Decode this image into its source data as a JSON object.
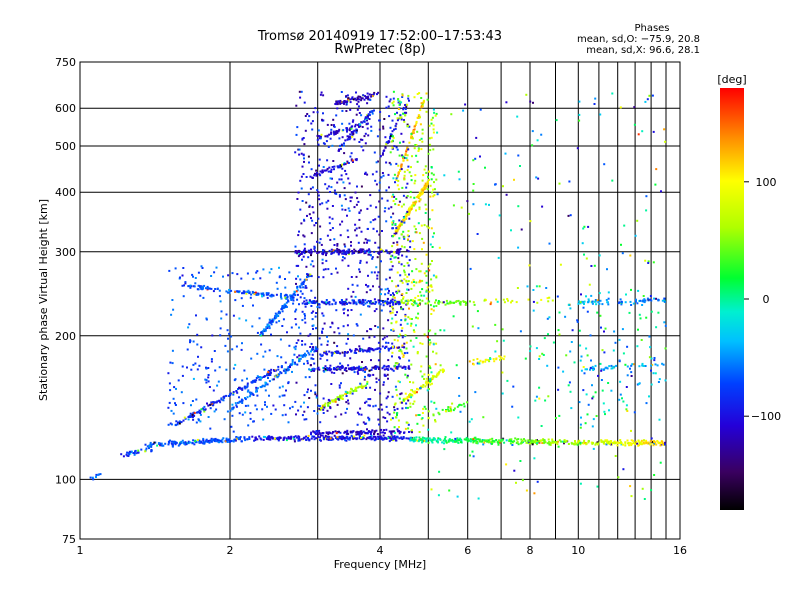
{
  "chart_data": {
    "type": "scatter",
    "title": "Tromsø 20140919 17:52:00–17:53:43",
    "subtitle": "RwPretec (8p)",
    "xlabel": "Frequency [MHz]",
    "ylabel": "Stationary phase Virtual Height [km]",
    "x_scale": "log",
    "y_scale": "log",
    "xlim": [
      1,
      16
    ],
    "ylim": [
      75,
      750
    ],
    "x_ticks": [
      1,
      2,
      4,
      6,
      8,
      10,
      16
    ],
    "x_tick_labels": [
      "1",
      "2",
      "4",
      "6",
      "8",
      "10",
      "16"
    ],
    "x_minor_gridlines": [
      3,
      5,
      7,
      9,
      11,
      12,
      13,
      14,
      15
    ],
    "y_ticks": [
      75,
      100,
      200,
      300,
      400,
      500,
      600,
      750
    ],
    "y_tick_labels": [
      "75",
      "100",
      "200",
      "300",
      "400",
      "500",
      "600",
      "750"
    ],
    "grid": true,
    "phase_box": {
      "heading": "Phases",
      "line_o": "mean, sd,O: −75.9, 20.8",
      "line_x": "mean, sd,X:  96.6, 28.1"
    },
    "colorbar": {
      "label": "[deg]",
      "range": [
        -180,
        180
      ],
      "ticks": [
        100,
        0,
        -100
      ],
      "tick_labels": [
        "100",
        "0",
        "−100"
      ],
      "colormap": "rainbow (black → violet → blue → cyan → green → yellow → orange → red)"
    },
    "traces": [
      {
        "kind": "band",
        "f_start": 1.35,
        "f_end": 2.2,
        "h_start": 118,
        "h_end": 122,
        "phase": -70,
        "density": 160
      },
      {
        "kind": "band",
        "f_start": 2.2,
        "f_end": 4.6,
        "h_start": 122,
        "h_end": 122,
        "phase": -95,
        "density": 240
      },
      {
        "kind": "band",
        "f_start": 4.6,
        "f_end": 15.0,
        "h_start": 121,
        "h_end": 119,
        "phase": -10,
        "phase_end": 110,
        "density": 420
      },
      {
        "kind": "band",
        "f_start": 1.2,
        "f_end": 1.4,
        "h_start": 112,
        "h_end": 116,
        "phase": -75,
        "density": 30
      },
      {
        "kind": "band",
        "f_start": 1.05,
        "f_end": 1.1,
        "h_start": 100,
        "h_end": 103,
        "phase": -70,
        "density": 8
      },
      {
        "kind": "band",
        "f_start": 1.55,
        "f_end": 2.6,
        "h_start": 130,
        "h_end": 175,
        "phase": -85,
        "density": 140
      },
      {
        "kind": "band",
        "f_start": 2.0,
        "f_end": 3.0,
        "h_start": 140,
        "h_end": 190,
        "phase": -60,
        "density": 100
      },
      {
        "kind": "band",
        "f_start": 1.6,
        "f_end": 2.7,
        "h_start": 255,
        "h_end": 240,
        "phase": -70,
        "density": 110
      },
      {
        "kind": "band",
        "f_start": 2.3,
        "f_end": 2.9,
        "h_start": 200,
        "h_end": 270,
        "phase": -65,
        "density": 110
      },
      {
        "kind": "band",
        "f_start": 2.7,
        "f_end": 4.4,
        "h_start": 300,
        "h_end": 300,
        "phase": -110,
        "density": 130
      },
      {
        "kind": "band",
        "f_start": 2.8,
        "f_end": 4.4,
        "h_start": 235,
        "h_end": 235,
        "phase": -85,
        "density": 130
      },
      {
        "kind": "band",
        "f_start": 4.4,
        "f_end": 6.2,
        "h_start": 235,
        "h_end": 235,
        "phase": 40,
        "density": 60
      },
      {
        "kind": "band",
        "f_start": 2.9,
        "f_end": 4.6,
        "h_start": 170,
        "h_end": 172,
        "phase": -100,
        "density": 130
      },
      {
        "kind": "band",
        "f_start": 3.0,
        "f_end": 4.5,
        "h_start": 183,
        "h_end": 190,
        "phase": -90,
        "density": 80
      },
      {
        "kind": "band",
        "f_start": 2.9,
        "f_end": 4.7,
        "h_start": 125,
        "h_end": 126,
        "phase": -110,
        "density": 110
      },
      {
        "kind": "band",
        "f_start": 3.0,
        "f_end": 3.8,
        "h_start": 140,
        "h_end": 160,
        "phase": 60,
        "density": 80
      },
      {
        "kind": "band",
        "f_start": 4.4,
        "f_end": 5.4,
        "h_start": 145,
        "h_end": 170,
        "phase": 90,
        "density": 70
      },
      {
        "kind": "band",
        "f_start": 3.2,
        "f_end": 3.9,
        "h_start": 610,
        "h_end": 640,
        "phase": -115,
        "density": 60
      },
      {
        "kind": "band",
        "f_start": 3.0,
        "f_end": 3.8,
        "h_start": 520,
        "h_end": 560,
        "phase": -110,
        "density": 50
      },
      {
        "kind": "band",
        "f_start": 2.9,
        "f_end": 3.6,
        "h_start": 430,
        "h_end": 470,
        "phase": -105,
        "density": 40
      },
      {
        "kind": "band",
        "f_start": 3.3,
        "f_end": 3.9,
        "h_start": 490,
        "h_end": 600,
        "phase": -90,
        "density": 50
      },
      {
        "kind": "band",
        "f_start": 4.3,
        "f_end": 5.0,
        "h_start": 330,
        "h_end": 420,
        "phase": 110,
        "density": 140
      },
      {
        "kind": "band",
        "f_start": 4.3,
        "f_end": 4.9,
        "h_start": 420,
        "h_end": 620,
        "phase": 120,
        "density": 60
      },
      {
        "kind": "band",
        "f_start": 4.0,
        "f_end": 4.6,
        "h_start": 470,
        "h_end": 640,
        "phase": -100,
        "density": 40
      },
      {
        "kind": "band",
        "f_start": 12.0,
        "f_end": 15.0,
        "h_start": 235,
        "h_end": 238,
        "phase": -60,
        "density": 40
      },
      {
        "kind": "band",
        "f_start": 10.0,
        "f_end": 11.5,
        "h_start": 235,
        "h_end": 235,
        "phase": -40,
        "density": 30
      },
      {
        "kind": "band",
        "f_start": 6.4,
        "f_end": 9.0,
        "h_start": 237,
        "h_end": 237,
        "phase": 80,
        "density": 20
      },
      {
        "kind": "band",
        "f_start": 10.0,
        "f_end": 15.0,
        "h_start": 170,
        "h_end": 175,
        "phase": -40,
        "density": 40
      },
      {
        "kind": "band",
        "f_start": 6.0,
        "f_end": 7.2,
        "h_start": 175,
        "h_end": 180,
        "phase": 100,
        "density": 25
      },
      {
        "kind": "band",
        "f_start": 5.0,
        "f_end": 6.0,
        "h_start": 135,
        "h_end": 145,
        "phase": 30,
        "density": 25
      },
      {
        "kind": "cloud",
        "f_min": 2.7,
        "f_max": 4.6,
        "h_min": 130,
        "h_max": 650,
        "phase": -100,
        "spread": 70,
        "count": 800
      },
      {
        "kind": "cloud",
        "f_min": 1.5,
        "f_max": 3.0,
        "h_min": 125,
        "h_max": 280,
        "phase": -70,
        "spread": 40,
        "count": 300
      },
      {
        "kind": "cloud",
        "f_min": 4.2,
        "f_max": 5.2,
        "h_min": 125,
        "h_max": 650,
        "phase": 60,
        "spread": 120,
        "count": 420
      },
      {
        "kind": "cloud",
        "f_min": 5.0,
        "f_max": 15.0,
        "h_min": 90,
        "h_max": 650,
        "phase": 0,
        "spread": 180,
        "count": 220
      },
      {
        "kind": "cloud",
        "f_min": 8.0,
        "f_max": 15.0,
        "h_min": 130,
        "h_max": 250,
        "phase": -30,
        "spread": 120,
        "count": 140
      }
    ]
  }
}
